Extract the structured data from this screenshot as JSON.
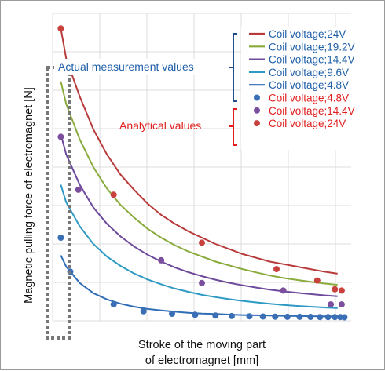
{
  "chart_data": {
    "type": "line",
    "xlabel_line1": "Stroke of the moving part",
    "xlabel_line2": "of electromagnet [mm]",
    "ylabel": "Magnetic pulling force of electromagnet [N]",
    "grid": true,
    "legend_placement": "top-right",
    "groups": {
      "measured": {
        "label": "Actual measurement values",
        "color": "#1f5fa8"
      },
      "analytical": {
        "label": "Analytical values",
        "color": "#e0201e"
      }
    },
    "series": [
      {
        "name": "Coil voltage;24V",
        "kind": "line",
        "color": "#b83a3a",
        "x": [
          0.6,
          1,
          2,
          3,
          4,
          5,
          6,
          7,
          8,
          9,
          10,
          11,
          12,
          13,
          14,
          15,
          16,
          17,
          18,
          19,
          20,
          21
        ],
        "y": [
          11.6,
          10.4,
          8.9,
          7.6,
          6.6,
          5.8,
          5.2,
          4.65,
          4.2,
          3.85,
          3.55,
          3.3,
          3.05,
          2.85,
          2.65,
          2.5,
          2.35,
          2.25,
          2.15,
          2.05,
          1.95,
          1.87
        ]
      },
      {
        "name": "Coil voltage;19.2V",
        "kind": "line",
        "color": "#8aab3c",
        "x": [
          0.6,
          1,
          2,
          3,
          4,
          5,
          6,
          7,
          8,
          9,
          10,
          11,
          12,
          13,
          14,
          15,
          16,
          17,
          18,
          19,
          20,
          21
        ],
        "y": [
          9.5,
          8.6,
          7.2,
          6.1,
          5.25,
          4.6,
          4.1,
          3.65,
          3.3,
          3.0,
          2.75,
          2.55,
          2.35,
          2.2,
          2.05,
          1.92,
          1.8,
          1.7,
          1.62,
          1.55,
          1.48,
          1.43
        ]
      },
      {
        "name": "Coil voltage;14.4V",
        "kind": "line",
        "color": "#6d4a9c",
        "x": [
          0.6,
          1,
          2,
          3,
          4,
          5,
          6,
          7,
          8,
          9,
          10,
          11,
          12,
          13,
          14,
          15,
          16,
          17,
          18,
          19,
          20,
          21
        ],
        "y": [
          7.4,
          6.6,
          5.4,
          4.5,
          3.85,
          3.35,
          2.95,
          2.62,
          2.35,
          2.12,
          1.93,
          1.77,
          1.63,
          1.51,
          1.41,
          1.32,
          1.24,
          1.17,
          1.11,
          1.06,
          1.01,
          0.97
        ]
      },
      {
        "name": "Coil voltage;9.6V",
        "kind": "line",
        "color": "#2e9ac4",
        "x": [
          0.6,
          1,
          2,
          3,
          4,
          5,
          6,
          7,
          8,
          9,
          10,
          11,
          12,
          13,
          14,
          15,
          16,
          17,
          18,
          19,
          20,
          21
        ],
        "y": [
          5.4,
          4.7,
          3.75,
          3.05,
          2.55,
          2.18,
          1.88,
          1.64,
          1.45,
          1.28,
          1.15,
          1.03,
          0.94,
          0.86,
          0.79,
          0.73,
          0.68,
          0.63,
          0.59,
          0.56,
          0.53,
          0.5
        ]
      },
      {
        "name": "Coil voltage;4.8V",
        "kind": "line",
        "color": "#2f6db5",
        "x": [
          0.6,
          1,
          2,
          3,
          4,
          5,
          6,
          7,
          8,
          9,
          10,
          11,
          12,
          13,
          14,
          15,
          16,
          17,
          18,
          19,
          20,
          21
        ],
        "y": [
          2.6,
          2.15,
          1.5,
          1.1,
          0.85,
          0.68,
          0.56,
          0.47,
          0.41,
          0.36,
          0.32,
          0.29,
          0.27,
          0.25,
          0.23,
          0.22,
          0.21,
          0.2,
          0.19,
          0.185,
          0.18,
          0.175
        ]
      },
      {
        "name": "Coil voltage;4.8V",
        "kind": "points",
        "color": "#3a6fb5",
        "x": [
          0.6,
          1.3,
          4.5,
          6.7,
          8.8,
          10.5,
          12.0,
          13.2,
          14.5,
          15.5,
          16.4,
          17.3,
          18.2,
          19.0,
          19.7,
          20.3,
          20.8,
          21.2,
          21.5
        ],
        "y": [
          3.3,
          1.95,
          0.65,
          0.38,
          0.28,
          0.24,
          0.21,
          0.19,
          0.18,
          0.17,
          0.165,
          0.16,
          0.16,
          0.155,
          0.15,
          0.15,
          0.15,
          0.15,
          0.14
        ]
      },
      {
        "name": "Coil voltage;14.4V",
        "kind": "points",
        "color": "#7b4f9e",
        "x": [
          0.6,
          1.9,
          8.0,
          11.0,
          17.0,
          20.5,
          21.3
        ],
        "y": [
          7.3,
          5.2,
          2.4,
          1.5,
          1.2,
          0.65,
          0.65
        ]
      },
      {
        "name": "Coil voltage;24V",
        "kind": "points",
        "color": "#c8413c",
        "x": [
          0.6,
          4.5,
          11.0,
          16.5,
          19.5,
          20.8,
          21.3
        ],
        "y": [
          11.6,
          5.0,
          3.1,
          2.05,
          1.6,
          1.25,
          1.2
        ]
      }
    ]
  }
}
